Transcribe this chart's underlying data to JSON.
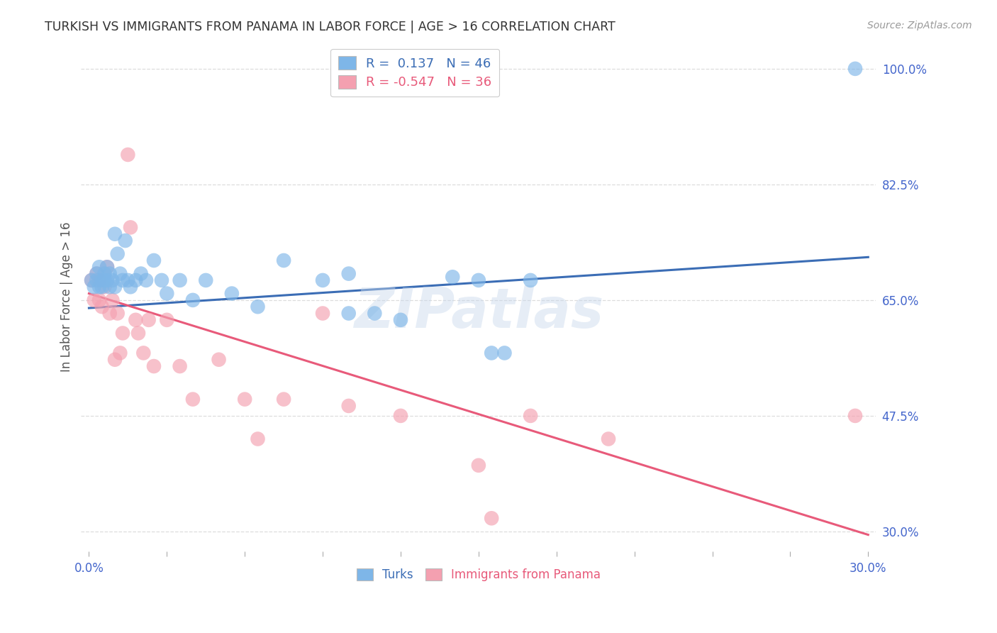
{
  "title": "TURKISH VS IMMIGRANTS FROM PANAMA IN LABOR FORCE | AGE > 16 CORRELATION CHART",
  "source": "Source: ZipAtlas.com",
  "ylabel": "In Labor Force | Age > 16",
  "xlim": [
    -0.003,
    0.303
  ],
  "ylim": [
    0.27,
    1.04
  ],
  "ytick_values": [
    0.3,
    0.475,
    0.65,
    0.825,
    1.0
  ],
  "xtick_values": [
    0.0,
    0.03,
    0.06,
    0.09,
    0.12,
    0.15,
    0.18,
    0.21,
    0.24,
    0.27,
    0.3
  ],
  "turks_R": "0.137",
  "turks_N": "46",
  "panama_R": "-0.547",
  "panama_N": "36",
  "turks_color": "#7EB6E8",
  "panama_color": "#F4A0B0",
  "turks_line_color": "#3B6DB5",
  "panama_line_color": "#E85A7A",
  "background_color": "#FFFFFF",
  "grid_color": "#DDDDDD",
  "title_color": "#333333",
  "axis_label_color": "#555555",
  "tick_label_color": "#4466CC",
  "watermark_text": "ZIPatlas",
  "turks_x": [
    0.001,
    0.002,
    0.003,
    0.003,
    0.004,
    0.004,
    0.005,
    0.005,
    0.006,
    0.006,
    0.007,
    0.007,
    0.008,
    0.008,
    0.009,
    0.01,
    0.01,
    0.011,
    0.012,
    0.013,
    0.014,
    0.015,
    0.016,
    0.018,
    0.02,
    0.022,
    0.025,
    0.028,
    0.03,
    0.035,
    0.04,
    0.045,
    0.055,
    0.065,
    0.075,
    0.09,
    0.1,
    0.11,
    0.12,
    0.14,
    0.15,
    0.155,
    0.16,
    0.17,
    0.1,
    0.295
  ],
  "turks_y": [
    0.68,
    0.67,
    0.69,
    0.68,
    0.67,
    0.7,
    0.68,
    0.67,
    0.68,
    0.69,
    0.7,
    0.68,
    0.67,
    0.69,
    0.68,
    0.67,
    0.75,
    0.72,
    0.69,
    0.68,
    0.74,
    0.68,
    0.67,
    0.68,
    0.69,
    0.68,
    0.71,
    0.68,
    0.66,
    0.68,
    0.65,
    0.68,
    0.66,
    0.64,
    0.71,
    0.68,
    0.69,
    0.63,
    0.62,
    0.685,
    0.68,
    0.57,
    0.57,
    0.68,
    0.63,
    1.0
  ],
  "panama_x": [
    0.001,
    0.002,
    0.003,
    0.004,
    0.004,
    0.005,
    0.006,
    0.007,
    0.008,
    0.009,
    0.01,
    0.011,
    0.012,
    0.013,
    0.015,
    0.016,
    0.018,
    0.019,
    0.021,
    0.023,
    0.025,
    0.03,
    0.035,
    0.04,
    0.05,
    0.06,
    0.065,
    0.075,
    0.09,
    0.1,
    0.12,
    0.15,
    0.17,
    0.2,
    0.155,
    0.295
  ],
  "panama_y": [
    0.68,
    0.65,
    0.69,
    0.65,
    0.68,
    0.64,
    0.67,
    0.7,
    0.63,
    0.65,
    0.56,
    0.63,
    0.57,
    0.6,
    0.87,
    0.76,
    0.62,
    0.6,
    0.57,
    0.62,
    0.55,
    0.62,
    0.55,
    0.5,
    0.56,
    0.5,
    0.44,
    0.5,
    0.63,
    0.49,
    0.475,
    0.4,
    0.475,
    0.44,
    0.32,
    0.475
  ],
  "turks_line_x": [
    0.0,
    0.3
  ],
  "turks_line_y": [
    0.638,
    0.715
  ],
  "panama_line_x": [
    0.0,
    0.3
  ],
  "panama_line_y": [
    0.66,
    0.295
  ]
}
